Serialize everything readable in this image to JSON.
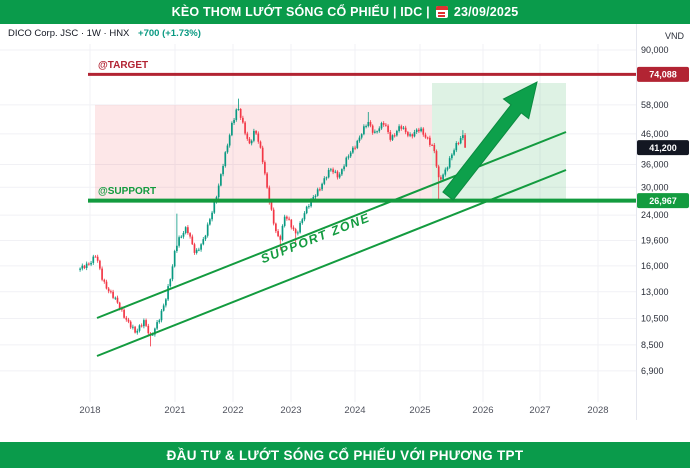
{
  "header": {
    "title": "KÈO THƠM LƯỚT SÓNG CỔ PHIẾU | IDC |",
    "date": "23/09/2025"
  },
  "footer": {
    "text": "ĐẦU TƯ & LƯỚT SÓNG CỔ PHIẾU VỚI PHƯƠNG TPT"
  },
  "legend": {
    "symbol_info": "DICO Corp. JSC · 1W · HNX",
    "change": "+700 (+1.73%)"
  },
  "colors": {
    "brand_green": "#0a9b4b",
    "target_red": "#b22433",
    "support_green": "#139b3f",
    "zone_pink": "rgba(242,54,69,0.12)",
    "zone_green": "rgba(34,171,77,0.15)",
    "arrow_green": "#0da04b",
    "grid": "#f1f1f5",
    "last_badge": "#131722",
    "up": "#089981",
    "down": "#f23645"
  },
  "chart_data": {
    "type": "candlestick",
    "symbol": "IDC",
    "timeframe": "1W",
    "exchange": "HNX",
    "scale": "log",
    "unit": "VND",
    "x_range": [
      2017.65,
      2025.73
    ],
    "x_ticks": [
      2018,
      2021,
      2022,
      2023,
      2024,
      2025,
      2026,
      2027,
      2028
    ],
    "y_ticks": [
      90000,
      58000,
      46000,
      36000,
      30000,
      24000,
      19600,
      16000,
      13000,
      10500,
      8500,
      6900
    ],
    "levels": {
      "target": {
        "name": "target",
        "label": "@TARGET",
        "value": 74088,
        "display": "74,088",
        "color": "#b22433"
      },
      "last": {
        "name": "last",
        "label": "",
        "value": 41200,
        "display": "41,200",
        "color": "#131722"
      },
      "support": {
        "name": "support",
        "label": "@SUPPORT",
        "value": 26967,
        "display": "26,967",
        "color": "#139b3f"
      }
    },
    "annotations": {
      "support_zone_label": "SUPPORT ZONE"
    },
    "last_close": 41200,
    "anchors": [
      [
        2017.65,
        15500
      ],
      [
        2018.0,
        16500
      ],
      [
        2018.2,
        17400
      ],
      [
        2018.45,
        14200
      ],
      [
        2018.8,
        12600
      ],
      [
        2019.2,
        10800
      ],
      [
        2019.6,
        9300
      ],
      [
        2019.9,
        10400
      ],
      [
        2020.15,
        8900
      ],
      [
        2020.4,
        10300
      ],
      [
        2020.7,
        12500
      ],
      [
        2020.9,
        15500
      ],
      [
        2021.05,
        19800
      ],
      [
        2021.2,
        21500
      ],
      [
        2021.35,
        17800
      ],
      [
        2021.5,
        19600
      ],
      [
        2021.63,
        24500
      ],
      [
        2021.75,
        30000
      ],
      [
        2021.88,
        40000
      ],
      [
        2021.98,
        50000
      ],
      [
        2022.08,
        57000
      ],
      [
        2022.18,
        48500
      ],
      [
        2022.28,
        42500
      ],
      [
        2022.38,
        47500
      ],
      [
        2022.5,
        38500
      ],
      [
        2022.62,
        27500
      ],
      [
        2022.72,
        21500
      ],
      [
        2022.8,
        19300
      ],
      [
        2022.9,
        24500
      ],
      [
        2023.0,
        22000
      ],
      [
        2023.08,
        20300
      ],
      [
        2023.2,
        24500
      ],
      [
        2023.35,
        27500
      ],
      [
        2023.5,
        31500
      ],
      [
        2023.62,
        34500
      ],
      [
        2023.75,
        33000
      ],
      [
        2023.9,
        38500
      ],
      [
        2024.05,
        44000
      ],
      [
        2024.2,
        50500
      ],
      [
        2024.3,
        46500
      ],
      [
        2024.45,
        50000
      ],
      [
        2024.55,
        44500
      ],
      [
        2024.7,
        48500
      ],
      [
        2024.85,
        45500
      ],
      [
        2025.0,
        47500
      ],
      [
        2025.12,
        44500
      ],
      [
        2025.22,
        40500
      ],
      [
        2025.3,
        31500
      ],
      [
        2025.4,
        34500
      ],
      [
        2025.5,
        38500
      ],
      [
        2025.6,
        43000
      ],
      [
        2025.68,
        45800
      ],
      [
        2025.73,
        41200
      ]
    ],
    "wick_events": [
      {
        "t": 2020.15,
        "low": 8400
      },
      {
        "t": 2021.05,
        "high": 24300
      },
      {
        "t": 2022.08,
        "high": 61000
      },
      {
        "t": 2022.8,
        "low": 18100
      },
      {
        "t": 2023.08,
        "low": 19300
      },
      {
        "t": 2024.2,
        "high": 54800
      },
      {
        "t": 2025.3,
        "low": 27050
      },
      {
        "t": 2025.68,
        "high": 47400
      }
    ]
  }
}
